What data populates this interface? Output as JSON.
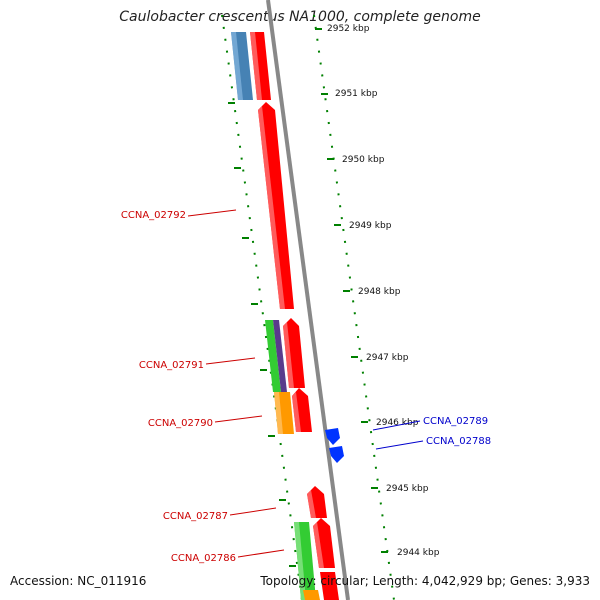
{
  "title": "Caulobacter crescentus NA1000, complete genome",
  "footer": {
    "accession": "Accession: NC_011916",
    "topology": "Topology: circular; Length: 4,042,929 bp; Genes: 3,933"
  },
  "colors": {
    "cds_red": "#ff0000",
    "blue_feature": "#4682b4",
    "green_feature": "#33cc33",
    "purple_feature": "#5a3b8c",
    "orange_feature": "#ff9900",
    "reverse_cds": "#0033ff",
    "backbone": "#888888",
    "tick": "#008000",
    "forward_label": "#cc0000",
    "reverse_label": "#0000cc"
  },
  "scale_labels": [
    "2952 kbp",
    "2951 kbp",
    "2950 kbp",
    "2949 kbp",
    "2948 kbp",
    "2947 kbp",
    "2946 kbp",
    "2945 kbp",
    "2944 kbp"
  ],
  "gene_labels": [
    {
      "id": "forward-2792",
      "text": "CCNA_02792",
      "strand": "forward"
    },
    {
      "id": "forward-2791",
      "text": "CCNA_02791",
      "strand": "forward"
    },
    {
      "id": "forward-2790",
      "text": "CCNA_02790",
      "strand": "forward"
    },
    {
      "id": "reverse-2789",
      "text": "CCNA_02789",
      "strand": "reverse"
    },
    {
      "id": "reverse-2788",
      "text": "CCNA_02788",
      "strand": "reverse"
    },
    {
      "id": "forward-2787",
      "text": "CCNA_02787",
      "strand": "forward"
    },
    {
      "id": "forward-2786",
      "text": "CCNA_02786",
      "strand": "forward"
    }
  ]
}
